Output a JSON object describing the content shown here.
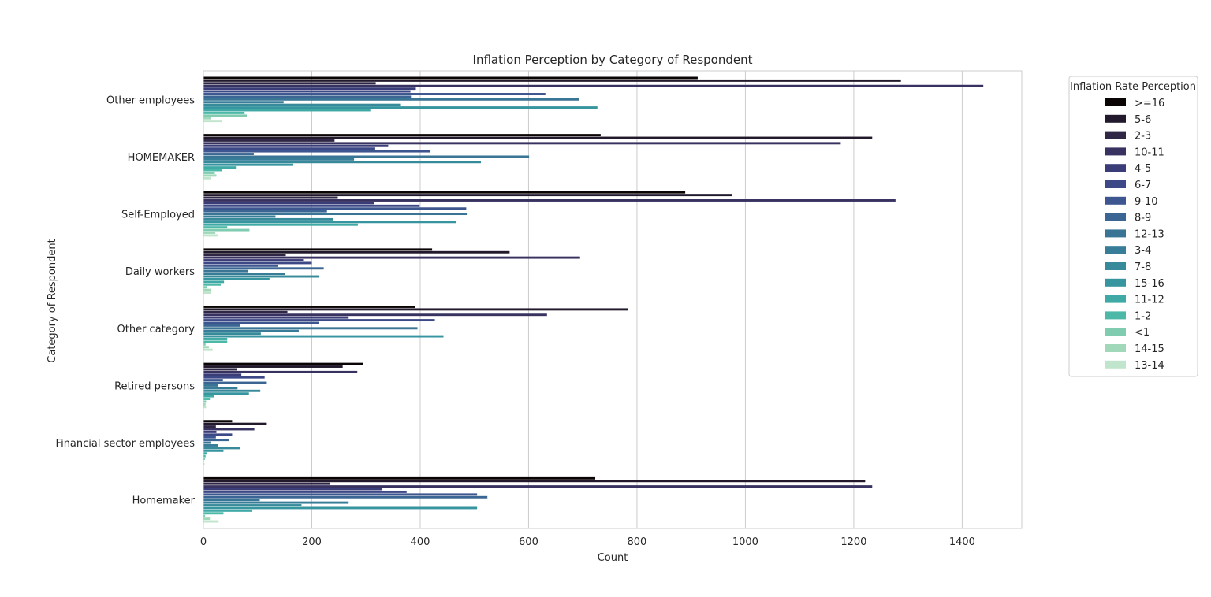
{
  "chart_data": {
    "type": "bar",
    "orientation": "horizontal",
    "title": "Inflation Perception by Category of Respondent",
    "xlabel": "Count",
    "ylabel": "Category of Respondent",
    "xlim": [
      0,
      1510
    ],
    "xticks": [
      0,
      200,
      400,
      600,
      800,
      1000,
      1200,
      1400
    ],
    "grid": "x",
    "legend": {
      "title": "Inflation Rate Perception",
      "placement": "outside-right"
    },
    "categories": [
      "Other employees",
      "HOMEMAKER",
      "Self-Employed",
      "Daily workers",
      "Other category",
      "Retired persons",
      "Financial sector employees",
      "Homemaker"
    ],
    "colors": [
      "#0b0405",
      "#221a2c",
      "#2f2745",
      "#383261",
      "#3b3d78",
      "#3d4887",
      "#3e568f",
      "#3b6693",
      "#3a7595",
      "#377d98",
      "#368a9a",
      "#3795a0",
      "#3ea9a5",
      "#4cb9a8",
      "#7fccb0",
      "#a1d8ba",
      "#c0e5cc"
    ],
    "series": [
      {
        "name": ">=16",
        "values": [
          912,
          733,
          889,
          422,
          391,
          295,
          53,
          723
        ]
      },
      {
        "name": "5-6",
        "values": [
          1287,
          1234,
          976,
          565,
          783,
          257,
          117,
          1221
        ]
      },
      {
        "name": "2-3",
        "values": [
          318,
          242,
          248,
          152,
          155,
          62,
          23,
          233
        ]
      },
      {
        "name": "10-11",
        "values": [
          1439,
          1176,
          1277,
          695,
          634,
          284,
          94,
          1234
        ]
      },
      {
        "name": "4-5",
        "values": [
          392,
          341,
          315,
          184,
          268,
          70,
          24,
          330
        ]
      },
      {
        "name": "6-7",
        "values": [
          382,
          317,
          399,
          200,
          427,
          113,
          53,
          375
        ]
      },
      {
        "name": "9-10",
        "values": [
          631,
          419,
          485,
          138,
          213,
          36,
          23,
          505
        ]
      },
      {
        "name": "8-9",
        "values": [
          383,
          93,
          228,
          222,
          68,
          117,
          47,
          524
        ]
      },
      {
        "name": "12-13",
        "values": [
          693,
          601,
          486,
          83,
          395,
          27,
          13,
          104
        ]
      },
      {
        "name": "3-4",
        "values": [
          148,
          278,
          133,
          150,
          176,
          63,
          27,
          268
        ]
      },
      {
        "name": "7-8",
        "values": [
          363,
          512,
          239,
          214,
          106,
          105,
          68,
          181
        ]
      },
      {
        "name": "15-16",
        "values": [
          727,
          165,
          467,
          122,
          443,
          84,
          37,
          505
        ]
      },
      {
        "name": "11-12",
        "values": [
          308,
          60,
          285,
          38,
          44,
          19,
          7,
          90
        ]
      },
      {
        "name": "1-2",
        "values": [
          76,
          34,
          44,
          32,
          44,
          12,
          4,
          37
        ]
      },
      {
        "name": "<1",
        "values": [
          80,
          21,
          85,
          7,
          4,
          5,
          3,
          3
        ]
      },
      {
        "name": "14-15",
        "values": [
          14,
          24,
          22,
          14,
          10,
          4,
          1,
          12
        ]
      },
      {
        "name": "13-14",
        "values": [
          34,
          14,
          26,
          14,
          17,
          5,
          2,
          28
        ]
      }
    ]
  }
}
